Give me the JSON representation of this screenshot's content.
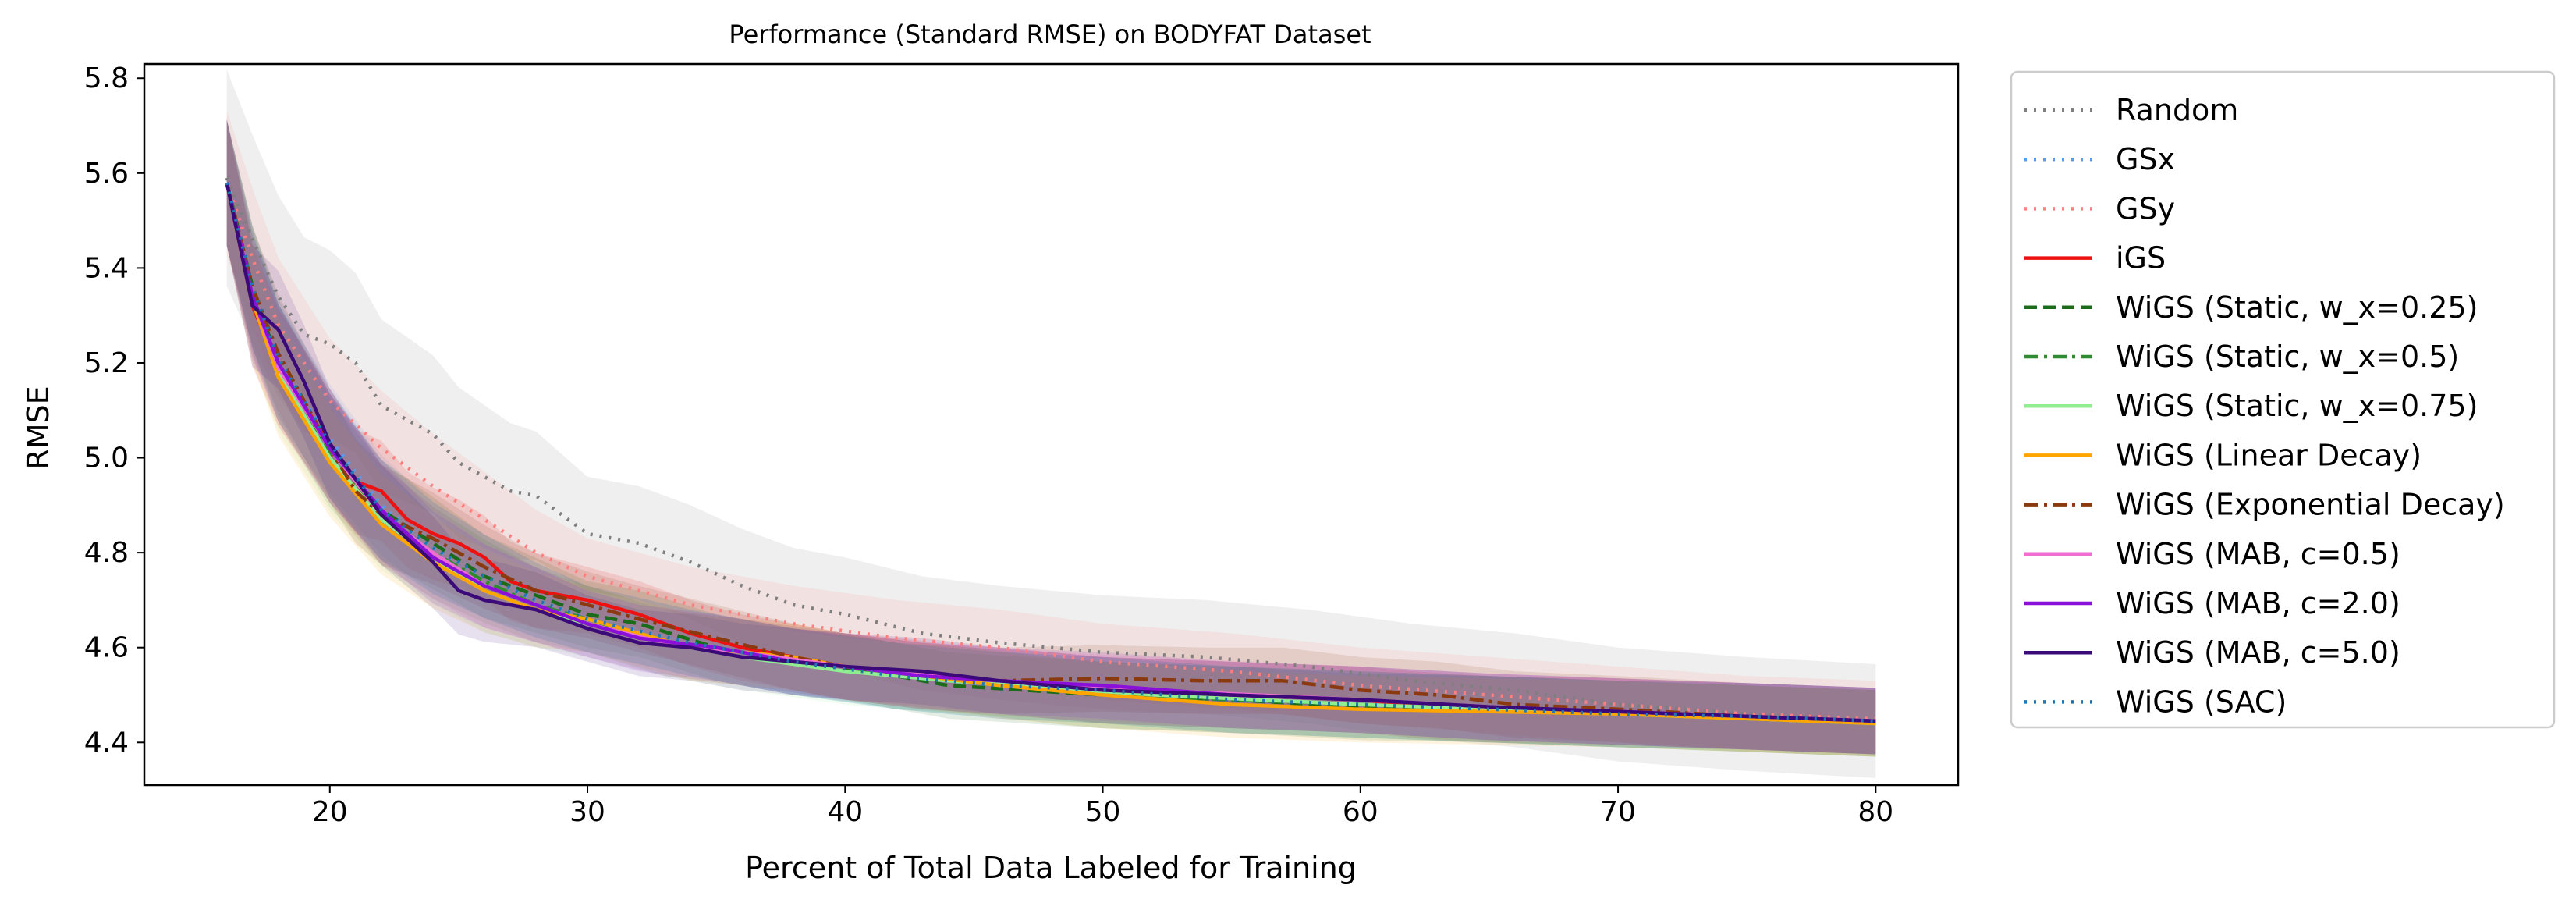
{
  "chart_data": {
    "type": "line",
    "title": "Performance (Standard RMSE) on BODYFAT Dataset",
    "xlabel": "Percent of Total Data Labeled for Training",
    "ylabel": "RMSE",
    "xlim": [
      12.8,
      83.2
    ],
    "ylim": [
      4.31,
      5.83
    ],
    "xticks": [
      20,
      30,
      40,
      50,
      60,
      70,
      80
    ],
    "yticks": [
      4.4,
      4.6,
      4.8,
      5.0,
      5.2,
      5.4,
      5.6,
      5.8
    ],
    "grid": false,
    "legend_position": "outside-right",
    "series": [
      {
        "name": "Random",
        "color": "#7f7f7f",
        "dash": "dotted",
        "band": 0.12,
        "points": [
          [
            16,
            5.59
          ],
          [
            17,
            5.46
          ],
          [
            18,
            5.34
          ],
          [
            19,
            5.26
          ],
          [
            20,
            5.24
          ],
          [
            21,
            5.2
          ],
          [
            22,
            5.11
          ],
          [
            24,
            5.05
          ],
          [
            25,
            4.99
          ],
          [
            27,
            4.93
          ],
          [
            28,
            4.92
          ],
          [
            30,
            4.84
          ],
          [
            32,
            4.82
          ],
          [
            34,
            4.78
          ],
          [
            36,
            4.73
          ],
          [
            38,
            4.69
          ],
          [
            40,
            4.67
          ],
          [
            43,
            4.63
          ],
          [
            46,
            4.61
          ],
          [
            50,
            4.59
          ],
          [
            54,
            4.58
          ],
          [
            58,
            4.56
          ],
          [
            62,
            4.53
          ],
          [
            66,
            4.51
          ],
          [
            70,
            4.48
          ],
          [
            75,
            4.46
          ],
          [
            80,
            4.445
          ]
        ]
      },
      {
        "name": "GSx",
        "color": "#5a9bf0",
        "dash": "dotted",
        "band": 0.07,
        "points": [
          [
            16,
            5.58
          ],
          [
            17,
            5.35
          ],
          [
            18,
            5.2
          ],
          [
            20,
            5.04
          ],
          [
            22,
            4.9
          ],
          [
            24,
            4.81
          ],
          [
            26,
            4.75
          ],
          [
            28,
            4.7
          ],
          [
            30,
            4.66
          ],
          [
            34,
            4.61
          ],
          [
            38,
            4.57
          ],
          [
            42,
            4.54
          ],
          [
            46,
            4.52
          ],
          [
            50,
            4.51
          ],
          [
            55,
            4.49
          ],
          [
            60,
            4.48
          ],
          [
            65,
            4.47
          ],
          [
            70,
            4.46
          ],
          [
            75,
            4.455
          ],
          [
            80,
            4.445
          ]
        ]
      },
      {
        "name": "GSy",
        "color": "#ff7f7f",
        "dash": "dotted",
        "band": 0.08,
        "points": [
          [
            16,
            5.58
          ],
          [
            17,
            5.42
          ],
          [
            18,
            5.28
          ],
          [
            20,
            5.12
          ],
          [
            22,
            5.02
          ],
          [
            24,
            4.94
          ],
          [
            26,
            4.87
          ],
          [
            28,
            4.8
          ],
          [
            30,
            4.75
          ],
          [
            34,
            4.69
          ],
          [
            38,
            4.65
          ],
          [
            42,
            4.62
          ],
          [
            46,
            4.6
          ],
          [
            50,
            4.57
          ],
          [
            55,
            4.55
          ],
          [
            60,
            4.52
          ],
          [
            65,
            4.5
          ],
          [
            70,
            4.48
          ],
          [
            75,
            4.46
          ],
          [
            80,
            4.45
          ]
        ]
      },
      {
        "name": "iGS",
        "color": "#ee1111",
        "dash": "solid",
        "band": 0.07,
        "points": [
          [
            16,
            5.58
          ],
          [
            17,
            5.32
          ],
          [
            18,
            5.19
          ],
          [
            19,
            5.11
          ],
          [
            20,
            5.03
          ],
          [
            21,
            4.95
          ],
          [
            22,
            4.93
          ],
          [
            23,
            4.87
          ],
          [
            24,
            4.84
          ],
          [
            25,
            4.82
          ],
          [
            26,
            4.79
          ],
          [
            27,
            4.74
          ],
          [
            28,
            4.72
          ],
          [
            29,
            4.71
          ],
          [
            30,
            4.7
          ],
          [
            32,
            4.67
          ],
          [
            34,
            4.63
          ],
          [
            36,
            4.6
          ],
          [
            38,
            4.58
          ],
          [
            40,
            4.56
          ],
          [
            42,
            4.55
          ],
          [
            45,
            4.53
          ],
          [
            48,
            4.52
          ],
          [
            50,
            4.51
          ],
          [
            55,
            4.5
          ],
          [
            60,
            4.49
          ],
          [
            62,
            4.48
          ],
          [
            65,
            4.47
          ],
          [
            70,
            4.465
          ],
          [
            75,
            4.455
          ],
          [
            80,
            4.445
          ]
        ]
      },
      {
        "name": "WiGS (Static, w_x=0.25)",
        "color": "#1a6b1a",
        "dash": "dashed",
        "band": 0.07,
        "points": [
          [
            16,
            5.58
          ],
          [
            17,
            5.36
          ],
          [
            18,
            5.2
          ],
          [
            20,
            5.02
          ],
          [
            22,
            4.89
          ],
          [
            24,
            4.82
          ],
          [
            26,
            4.75
          ],
          [
            28,
            4.71
          ],
          [
            30,
            4.67
          ],
          [
            32,
            4.65
          ],
          [
            35,
            4.6
          ],
          [
            38,
            4.57
          ],
          [
            41,
            4.55
          ],
          [
            44,
            4.52
          ],
          [
            47,
            4.51
          ],
          [
            50,
            4.5
          ],
          [
            55,
            4.49
          ],
          [
            60,
            4.475
          ],
          [
            65,
            4.47
          ],
          [
            70,
            4.46
          ],
          [
            75,
            4.45
          ],
          [
            80,
            4.44
          ]
        ]
      },
      {
        "name": "WiGS (Static, w_x=0.5)",
        "color": "#2e8b2e",
        "dash": "dashdot",
        "band": 0.07,
        "points": [
          [
            16,
            5.58
          ],
          [
            17,
            5.35
          ],
          [
            18,
            5.2
          ],
          [
            20,
            5.01
          ],
          [
            22,
            4.88
          ],
          [
            24,
            4.8
          ],
          [
            26,
            4.74
          ],
          [
            28,
            4.69
          ],
          [
            30,
            4.66
          ],
          [
            33,
            4.61
          ],
          [
            36,
            4.59
          ],
          [
            40,
            4.56
          ],
          [
            42,
            4.54
          ],
          [
            45,
            4.53
          ],
          [
            48,
            4.51
          ],
          [
            50,
            4.5
          ],
          [
            55,
            4.49
          ],
          [
            60,
            4.48
          ],
          [
            65,
            4.47
          ],
          [
            70,
            4.46
          ],
          [
            75,
            4.45
          ],
          [
            80,
            4.44
          ]
        ]
      },
      {
        "name": "WiGS (Static, w_x=0.75)",
        "color": "#90ee90",
        "dash": "solid",
        "band": 0.07,
        "points": [
          [
            16,
            5.58
          ],
          [
            17,
            5.33
          ],
          [
            18,
            5.18
          ],
          [
            20,
            5.0
          ],
          [
            22,
            4.87
          ],
          [
            24,
            4.79
          ],
          [
            26,
            4.72
          ],
          [
            28,
            4.68
          ],
          [
            30,
            4.65
          ],
          [
            33,
            4.61
          ],
          [
            36,
            4.58
          ],
          [
            40,
            4.55
          ],
          [
            44,
            4.53
          ],
          [
            48,
            4.515
          ],
          [
            52,
            4.5
          ],
          [
            56,
            4.49
          ],
          [
            60,
            4.48
          ],
          [
            65,
            4.47
          ],
          [
            70,
            4.46
          ],
          [
            75,
            4.45
          ],
          [
            80,
            4.44
          ]
        ]
      },
      {
        "name": "WiGS (Linear Decay)",
        "color": "#ffa500",
        "dash": "solid",
        "band": 0.07,
        "points": [
          [
            16,
            5.58
          ],
          [
            17,
            5.33
          ],
          [
            18,
            5.17
          ],
          [
            20,
            4.99
          ],
          [
            22,
            4.86
          ],
          [
            24,
            4.78
          ],
          [
            26,
            4.72
          ],
          [
            28,
            4.68
          ],
          [
            30,
            4.66
          ],
          [
            32,
            4.63
          ],
          [
            34,
            4.6
          ],
          [
            36,
            4.59
          ],
          [
            38,
            4.58
          ],
          [
            40,
            4.56
          ],
          [
            43,
            4.54
          ],
          [
            46,
            4.52
          ],
          [
            50,
            4.5
          ],
          [
            55,
            4.48
          ],
          [
            60,
            4.47
          ],
          [
            65,
            4.465
          ],
          [
            70,
            4.46
          ],
          [
            75,
            4.45
          ],
          [
            80,
            4.44
          ]
        ]
      },
      {
        "name": "WiGS (Exponential Decay)",
        "color": "#8b3a0f",
        "dash": "dashdot",
        "band": 0.07,
        "points": [
          [
            16,
            5.58
          ],
          [
            17,
            5.36
          ],
          [
            18,
            5.22
          ],
          [
            20,
            5.02
          ],
          [
            21,
            4.93
          ],
          [
            22,
            4.88
          ],
          [
            24,
            4.83
          ],
          [
            26,
            4.77
          ],
          [
            28,
            4.72
          ],
          [
            30,
            4.69
          ],
          [
            32,
            4.66
          ],
          [
            35,
            4.62
          ],
          [
            38,
            4.58
          ],
          [
            40,
            4.56
          ],
          [
            43,
            4.54
          ],
          [
            46,
            4.53
          ],
          [
            50,
            4.535
          ],
          [
            54,
            4.53
          ],
          [
            57,
            4.53
          ],
          [
            60,
            4.51
          ],
          [
            63,
            4.5
          ],
          [
            66,
            4.48
          ],
          [
            70,
            4.47
          ],
          [
            75,
            4.455
          ],
          [
            80,
            4.445
          ]
        ]
      },
      {
        "name": "WiGS (MAB, c=0.5)",
        "color": "#ee6fd0",
        "dash": "solid",
        "band": 0.07,
        "points": [
          [
            16,
            5.58
          ],
          [
            17,
            5.34
          ],
          [
            18,
            5.19
          ],
          [
            20,
            5.02
          ],
          [
            22,
            4.88
          ],
          [
            24,
            4.8
          ],
          [
            26,
            4.73
          ],
          [
            28,
            4.69
          ],
          [
            30,
            4.65
          ],
          [
            33,
            4.61
          ],
          [
            36,
            4.59
          ],
          [
            40,
            4.56
          ],
          [
            44,
            4.54
          ],
          [
            48,
            4.52
          ],
          [
            52,
            4.51
          ],
          [
            56,
            4.5
          ],
          [
            60,
            4.49
          ],
          [
            65,
            4.475
          ],
          [
            70,
            4.465
          ],
          [
            75,
            4.455
          ],
          [
            80,
            4.445
          ]
        ]
      },
      {
        "name": "WiGS (MAB, c=2.0)",
        "color": "#8a0fd8",
        "dash": "solid",
        "band": 0.07,
        "points": [
          [
            16,
            5.58
          ],
          [
            17,
            5.34
          ],
          [
            18,
            5.2
          ],
          [
            20,
            5.02
          ],
          [
            22,
            4.89
          ],
          [
            24,
            4.79
          ],
          [
            26,
            4.73
          ],
          [
            28,
            4.69
          ],
          [
            30,
            4.65
          ],
          [
            32,
            4.62
          ],
          [
            35,
            4.6
          ],
          [
            38,
            4.57
          ],
          [
            40,
            4.56
          ],
          [
            43,
            4.54
          ],
          [
            46,
            4.53
          ],
          [
            50,
            4.52
          ],
          [
            55,
            4.5
          ],
          [
            60,
            4.49
          ],
          [
            65,
            4.475
          ],
          [
            70,
            4.465
          ],
          [
            75,
            4.455
          ],
          [
            80,
            4.445
          ]
        ]
      },
      {
        "name": "WiGS (MAB, c=5.0)",
        "color": "#3b0a78",
        "dash": "solid",
        "band": 0.07,
        "points": [
          [
            16,
            5.58
          ],
          [
            17,
            5.32
          ],
          [
            18,
            5.27
          ],
          [
            19,
            5.16
          ],
          [
            20,
            5.03
          ],
          [
            22,
            4.88
          ],
          [
            24,
            4.78
          ],
          [
            25,
            4.72
          ],
          [
            26,
            4.7
          ],
          [
            28,
            4.68
          ],
          [
            30,
            4.64
          ],
          [
            32,
            4.61
          ],
          [
            34,
            4.6
          ],
          [
            36,
            4.58
          ],
          [
            38,
            4.57
          ],
          [
            40,
            4.56
          ],
          [
            43,
            4.55
          ],
          [
            46,
            4.53
          ],
          [
            50,
            4.51
          ],
          [
            55,
            4.5
          ],
          [
            60,
            4.49
          ],
          [
            65,
            4.475
          ],
          [
            70,
            4.465
          ],
          [
            75,
            4.455
          ],
          [
            80,
            4.445
          ]
        ]
      },
      {
        "name": "WiGS (SAC)",
        "color": "#1f77b4",
        "dash": "dotted",
        "band": 0.07,
        "points": [
          [
            16,
            5.58
          ],
          [
            17,
            5.36
          ],
          [
            18,
            5.21
          ],
          [
            20,
            5.03
          ],
          [
            22,
            4.89
          ],
          [
            24,
            4.81
          ],
          [
            26,
            4.75
          ],
          [
            28,
            4.7
          ],
          [
            30,
            4.66
          ],
          [
            34,
            4.61
          ],
          [
            38,
            4.57
          ],
          [
            42,
            4.54
          ],
          [
            46,
            4.52
          ],
          [
            50,
            4.51
          ],
          [
            55,
            4.49
          ],
          [
            60,
            4.48
          ],
          [
            65,
            4.47
          ],
          [
            70,
            4.46
          ],
          [
            75,
            4.455
          ],
          [
            80,
            4.445
          ]
        ]
      }
    ]
  }
}
